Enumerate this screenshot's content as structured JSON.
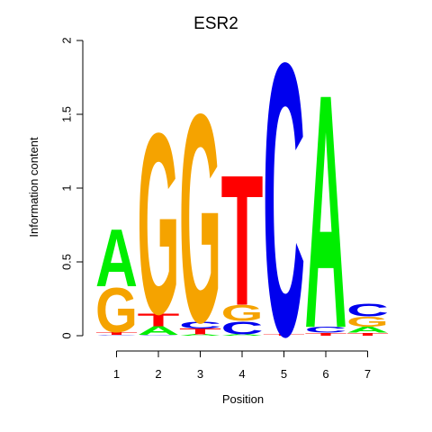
{
  "chart_data": {
    "type": "sequence-logo",
    "title": "ESR2",
    "xlabel": "Position",
    "ylabel": "Information content",
    "ylim": [
      0,
      2
    ],
    "y_ticks": [
      "0",
      "0.5",
      "1",
      "1.5",
      "2"
    ],
    "y_tick_values": [
      0,
      0.5,
      1,
      1.5,
      2
    ],
    "x_ticks": [
      "1",
      "2",
      "3",
      "4",
      "5",
      "6",
      "7"
    ],
    "colors": {
      "A": "#00ee00",
      "C": "#0000ee",
      "G": "#f5a300",
      "T": "#ff0000"
    },
    "positions": [
      {
        "position": "1",
        "letters": [
          {
            "base": "C",
            "height": 0.005
          },
          {
            "base": "T",
            "height": 0.02
          },
          {
            "base": "G",
            "height": 0.31
          },
          {
            "base": "A",
            "height": 0.4
          }
        ]
      },
      {
        "position": "2",
        "letters": [
          {
            "base": "C",
            "height": 0.005
          },
          {
            "base": "A",
            "height": 0.06
          },
          {
            "base": "T",
            "height": 0.09
          },
          {
            "base": "G",
            "height": 1.26
          }
        ]
      },
      {
        "position": "3",
        "letters": [
          {
            "base": "A",
            "height": 0.01
          },
          {
            "base": "T",
            "height": 0.04
          },
          {
            "base": "C",
            "height": 0.05
          },
          {
            "base": "G",
            "height": 1.45
          }
        ]
      },
      {
        "position": "4",
        "letters": [
          {
            "base": "A",
            "height": 0.01
          },
          {
            "base": "C",
            "height": 0.09
          },
          {
            "base": "G",
            "height": 0.11
          },
          {
            "base": "T",
            "height": 0.91
          }
        ]
      },
      {
        "position": "5",
        "letters": [
          {
            "base": "T",
            "height": 0.01
          },
          {
            "base": "C",
            "height": 1.9
          }
        ]
      },
      {
        "position": "6",
        "letters": [
          {
            "base": "T",
            "height": 0.02
          },
          {
            "base": "C",
            "height": 0.04
          },
          {
            "base": "A",
            "height": 1.63
          }
        ]
      },
      {
        "position": "7",
        "letters": [
          {
            "base": "T",
            "height": 0.02
          },
          {
            "base": "A",
            "height": 0.04
          },
          {
            "base": "G",
            "height": 0.07
          },
          {
            "base": "C",
            "height": 0.09
          }
        ]
      }
    ]
  }
}
